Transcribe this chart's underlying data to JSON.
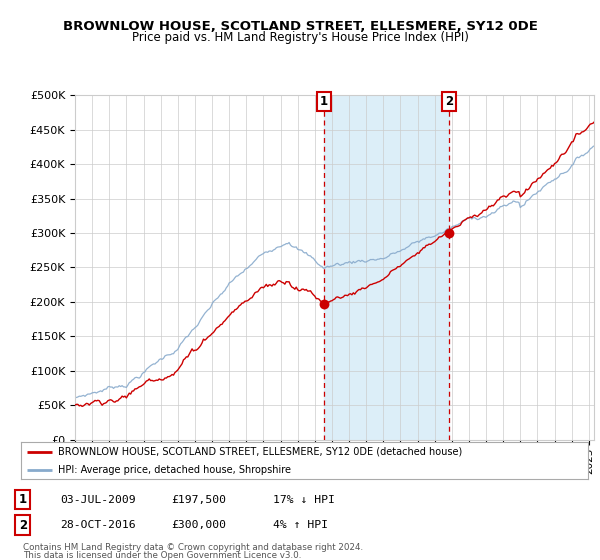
{
  "title": "BROWNLOW HOUSE, SCOTLAND STREET, ELLESMERE, SY12 0DE",
  "subtitle": "Price paid vs. HM Land Registry's House Price Index (HPI)",
  "ylim": [
    0,
    500000
  ],
  "yticks": [
    0,
    50000,
    100000,
    150000,
    200000,
    250000,
    300000,
    350000,
    400000,
    450000,
    500000
  ],
  "ytick_labels": [
    "£0",
    "£50K",
    "£100K",
    "£150K",
    "£200K",
    "£250K",
    "£300K",
    "£350K",
    "£400K",
    "£450K",
    "£500K"
  ],
  "red_line_color": "#cc0000",
  "blue_line_color": "#88aacc",
  "sale1_year": 2009.54,
  "sale1_price": 197500,
  "sale2_year": 2016.83,
  "sale2_price": 300000,
  "legend_line1": "BROWNLOW HOUSE, SCOTLAND STREET, ELLESMERE, SY12 0DE (detached house)",
  "legend_line2": "HPI: Average price, detached house, Shropshire",
  "footer1": "Contains HM Land Registry data © Crown copyright and database right 2024.",
  "footer2": "This data is licensed under the Open Government Licence v3.0.",
  "shaded_color": "#dceef8",
  "vline_color": "#cc0000",
  "dot_color": "#cc0000",
  "bg_color": "#ffffff",
  "grid_color": "#cccccc",
  "xlim_start": 1995,
  "xlim_end": 2025.3
}
